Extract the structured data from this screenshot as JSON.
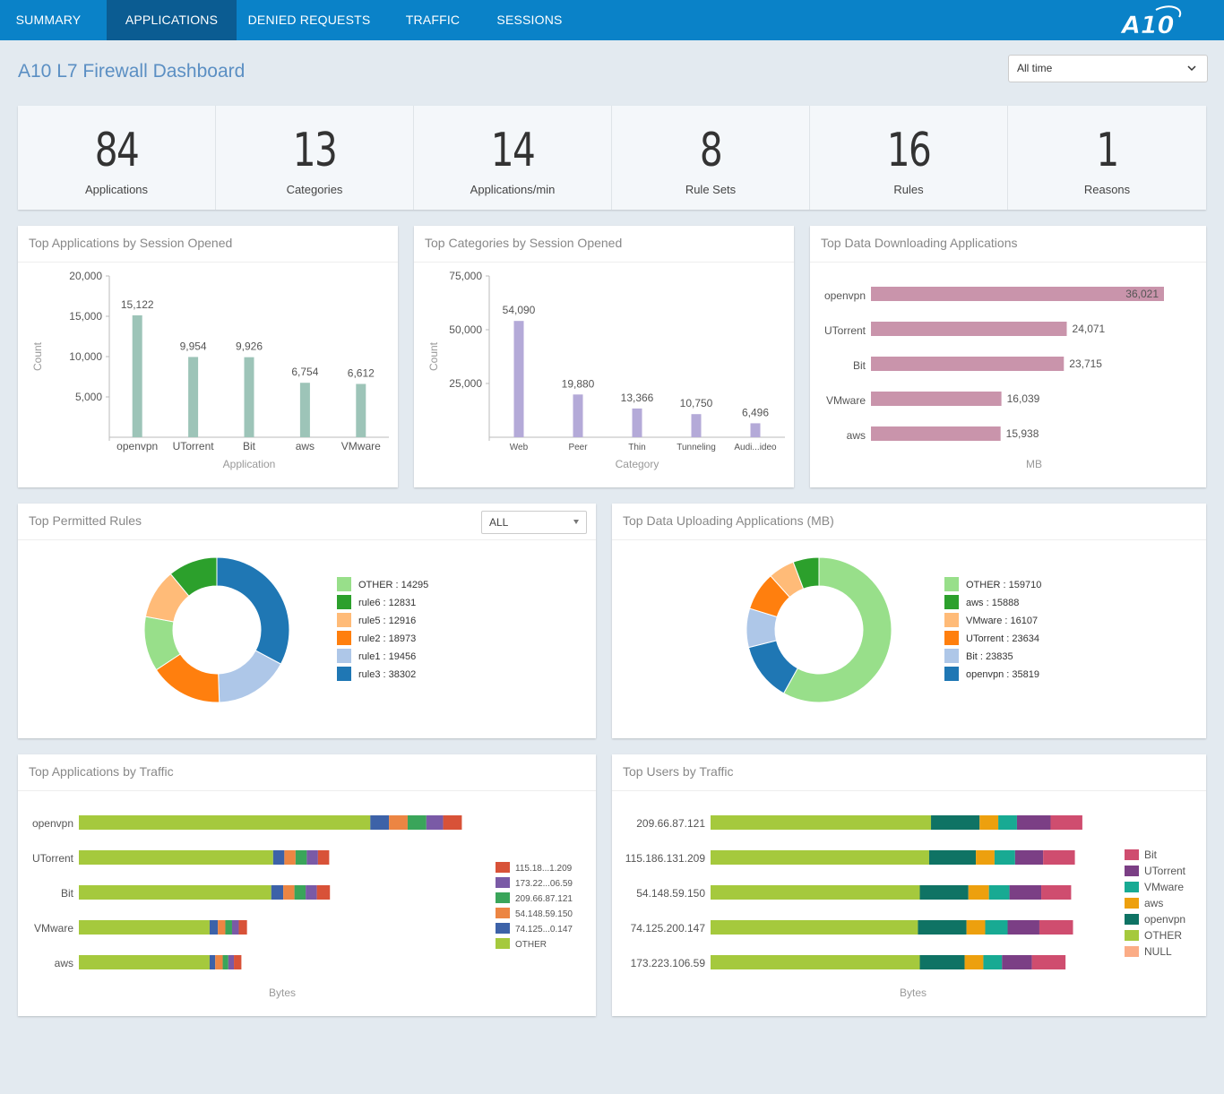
{
  "nav": {
    "tabs": [
      {
        "label": "SUMMARY"
      },
      {
        "label": "APPLICATIONS"
      },
      {
        "label": "DENIED REQUESTS"
      },
      {
        "label": "TRAFFIC"
      },
      {
        "label": "SESSIONS"
      }
    ],
    "active_tab": "APPLICATIONS",
    "logo_text": "A10"
  },
  "header": {
    "title": "A10 L7 Firewall Dashboard",
    "time_range": "All time"
  },
  "kpis": [
    {
      "value": "84",
      "label": "Applications"
    },
    {
      "value": "13",
      "label": "Categories"
    },
    {
      "value": "14",
      "label": "Applications/min"
    },
    {
      "value": "8",
      "label": "Rule Sets"
    },
    {
      "value": "16",
      "label": "Rules"
    },
    {
      "value": "1",
      "label": "Reasons"
    }
  ],
  "panels": {
    "apps_by_session": {
      "title": "Top Applications by Session Opened"
    },
    "categories_by_session": {
      "title": "Top Categories by Session Opened"
    },
    "data_downloading": {
      "title": "Top Data Downloading Applications"
    },
    "permitted_rules": {
      "title": "Top Permitted Rules",
      "filter_value": "ALL"
    },
    "data_uploading": {
      "title": "Top Data Uploading Applications (MB)"
    },
    "apps_by_traffic": {
      "title": "Top Applications by Traffic"
    },
    "users_by_traffic": {
      "title": "Top Users by Traffic"
    }
  },
  "colors": {
    "nav_bg": "#0a82c8",
    "nav_active": "#0b5c92",
    "title_blue": "#5b8fc3",
    "teal_bar": "#9dc4b8",
    "lavender_bar": "#b4aad8",
    "mauve_bar": "#c994ab"
  },
  "chart_data": [
    {
      "id": "apps_by_session",
      "type": "bar",
      "categories": [
        "openvpn",
        "UTorrent",
        "Bit",
        "aws",
        "VMware"
      ],
      "values": [
        15122,
        9954,
        9926,
        6754,
        6612
      ],
      "value_labels": [
        "15,122",
        "9,954",
        "9,926",
        "6,754",
        "6,612"
      ],
      "xlabel": "Application",
      "ylabel": "Count",
      "ylim": [
        0,
        20000
      ],
      "yticks": [
        "20,000",
        "15,000",
        "10,000",
        "5,000"
      ],
      "ytick_values": [
        20000,
        15000,
        10000,
        5000
      ],
      "color": "#9dc4b8"
    },
    {
      "id": "categories_by_session",
      "type": "bar",
      "categories": [
        "Web",
        "Peer",
        "Thin",
        "Tunneling",
        "Audi...ideo"
      ],
      "values": [
        54090,
        19880,
        13366,
        10750,
        6496
      ],
      "value_labels": [
        "54,090",
        "19,880",
        "13,366",
        "10,750",
        "6,496"
      ],
      "xlabel": "Category",
      "ylabel": "Count",
      "ylim": [
        0,
        75000
      ],
      "yticks": [
        "75,000",
        "50,000",
        "25,000"
      ],
      "ytick_values": [
        75000,
        50000,
        25000
      ],
      "color": "#b4aad8"
    },
    {
      "id": "data_downloading",
      "type": "bar",
      "orientation": "horizontal",
      "categories": [
        "openvpn",
        "UTorrent",
        "Bit",
        "VMware",
        "aws"
      ],
      "values": [
        36021,
        24071,
        23715,
        16039,
        15938
      ],
      "value_labels": [
        "36,021",
        "24,071",
        "23,715",
        "16,039",
        "15,938"
      ],
      "xlabel": "MB",
      "xlim": [
        0,
        36021
      ],
      "color": "#c994ab"
    },
    {
      "id": "permitted_rules",
      "type": "pie",
      "donut": true,
      "slices": [
        {
          "label": "OTHER : 14295",
          "value": 14295,
          "color": "#98df8a"
        },
        {
          "label": "rule6 : 12831",
          "value": 12831,
          "color": "#2ca02c"
        },
        {
          "label": "rule5 : 12916",
          "value": 12916,
          "color": "#ffbb78"
        },
        {
          "label": "rule2 : 18973",
          "value": 18973,
          "color": "#ff7f0e"
        },
        {
          "label": "rule1 : 19456",
          "value": 19456,
          "color": "#aec7e8"
        },
        {
          "label": "rule3 : 38302",
          "value": 38302,
          "color": "#1f77b4"
        }
      ]
    },
    {
      "id": "data_uploading",
      "type": "pie",
      "donut": true,
      "slices": [
        {
          "label": "OTHER : 159710",
          "value": 159710,
          "color": "#98df8a"
        },
        {
          "label": "aws : 15888",
          "value": 15888,
          "color": "#2ca02c"
        },
        {
          "label": "VMware : 16107",
          "value": 16107,
          "color": "#ffbb78"
        },
        {
          "label": "UTorrent : 23634",
          "value": 23634,
          "color": "#ff7f0e"
        },
        {
          "label": "Bit : 23835",
          "value": 23835,
          "color": "#aec7e8"
        },
        {
          "label": "openvpn : 35819",
          "value": 35819,
          "color": "#1f77b4"
        }
      ]
    },
    {
      "id": "apps_by_traffic",
      "type": "bar",
      "orientation": "horizontal",
      "stacked": true,
      "categories": [
        "openvpn",
        "UTorrent",
        "Bit",
        "VMware",
        "aws"
      ],
      "xlabel": "Bytes",
      "series": [
        {
          "name": "OTHER",
          "color": "#a5c93d",
          "values": [
            78,
            52,
            51.5,
            35,
            35
          ]
        },
        {
          "name": "74.125...0.147",
          "color": "#3d62a8",
          "values": [
            5,
            3,
            3.2,
            2.2,
            1.5
          ]
        },
        {
          "name": "54.148.59.150",
          "color": "#ec8543",
          "values": [
            5,
            3,
            3,
            2,
            2
          ]
        },
        {
          "name": "209.66.87.121",
          "color": "#3aa55a",
          "values": [
            5,
            3,
            3,
            1.8,
            1.5
          ]
        },
        {
          "name": "173.22...06.59",
          "color": "#7a5aa6",
          "values": [
            4.5,
            3,
            3,
            1.8,
            1.5
          ]
        },
        {
          "name": "115.18...1.209",
          "color": "#d85238",
          "values": [
            5,
            3,
            3.5,
            2.2,
            2
          ]
        }
      ]
    },
    {
      "id": "users_by_traffic",
      "type": "bar",
      "orientation": "horizontal",
      "stacked": true,
      "categories": [
        "209.66.87.121",
        "115.186.131.209",
        "54.148.59.150",
        "74.125.200.147",
        "173.223.106.59"
      ],
      "xlabel": "Bytes",
      "series": [
        {
          "name": "OTHER",
          "color": "#a5c93d",
          "values": [
            59,
            58.5,
            56,
            55.5,
            56
          ]
        },
        {
          "name": "openvpn",
          "color": "#0f7364",
          "values": [
            13,
            12.5,
            13,
            13,
            12
          ]
        },
        {
          "name": "aws",
          "color": "#eda00e",
          "values": [
            5,
            5,
            5.5,
            5,
            5
          ]
        },
        {
          "name": "VMware",
          "color": "#18aa93",
          "values": [
            5,
            5.5,
            5.5,
            6,
            5
          ]
        },
        {
          "name": "UTorrent",
          "color": "#7b3f85",
          "values": [
            9,
            7.5,
            8.5,
            8.5,
            8
          ]
        },
        {
          "name": "Bit",
          "color": "#cf4d6f",
          "values": [
            8.5,
            8.5,
            8,
            9,
            9
          ]
        }
      ],
      "legend": [
        {
          "name": "Bit",
          "color": "#cf4d6f"
        },
        {
          "name": "UTorrent",
          "color": "#7b3f85"
        },
        {
          "name": "VMware",
          "color": "#18aa93"
        },
        {
          "name": "aws",
          "color": "#eda00e"
        },
        {
          "name": "openvpn",
          "color": "#0f7364"
        },
        {
          "name": "OTHER",
          "color": "#a5c93d"
        },
        {
          "name": "NULL",
          "color": "#fbac86"
        }
      ]
    }
  ]
}
